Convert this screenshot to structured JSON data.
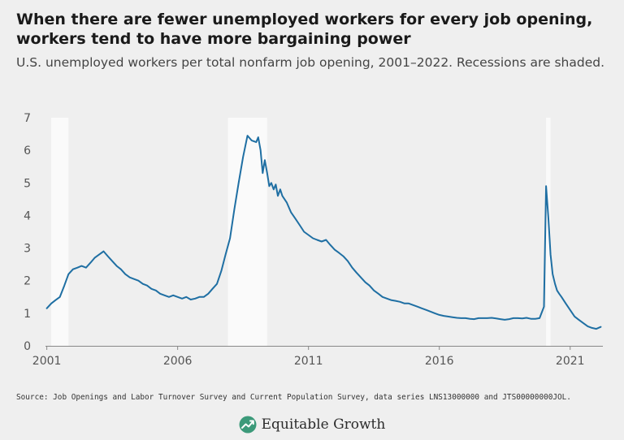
{
  "header": {
    "title": "When there are fewer unemployed workers for every job opening, workers tend to have more bargaining power",
    "subtitle": "U.S. unemployed workers per total nonfarm job opening, 2001–2022. Recessions are shaded."
  },
  "footer": {
    "source": "Source: Job Openings and Labor Turnover Survey and Current Population Survey, data series LNS13000000 and JTS00000000JOL.",
    "brand": "Equitable Growth",
    "brand_icon": "trend-arrow-leaf-icon"
  },
  "colors": {
    "background": "#efefef",
    "line": "#1f6fa3",
    "recession_shade": "#fafafa",
    "axis_text": "#555555",
    "brand_green": "#3c9a7a"
  },
  "chart_data": {
    "type": "line",
    "title": "When there are fewer unemployed workers for every job opening, workers tend to have more bargaining power",
    "subtitle": "U.S. unemployed workers per total nonfarm job opening, 2001–2022. Recessions are shaded.",
    "xlabel": "",
    "ylabel": "",
    "xlim": [
      2000.95,
      2022.25
    ],
    "ylim": [
      0,
      7
    ],
    "xticks": [
      2001,
      2006,
      2011,
      2016,
      2021
    ],
    "xtick_labels": [
      "2001",
      "2006",
      "2011",
      "2016",
      "2021"
    ],
    "yticks": [
      0,
      1,
      2,
      3,
      4,
      5,
      6,
      7
    ],
    "ytick_labels": [
      "0",
      "1",
      "2",
      "3",
      "4",
      "5",
      "6",
      "7"
    ],
    "grid": false,
    "recessions": [
      {
        "start": 2001.17,
        "end": 2001.83
      },
      {
        "start": 2007.92,
        "end": 2009.42
      },
      {
        "start": 2020.08,
        "end": 2020.25
      }
    ],
    "series": [
      {
        "x": [
          2001.0,
          2001.17,
          2001.33,
          2001.5,
          2001.67,
          2001.83,
          2002.0,
          2002.17,
          2002.33,
          2002.5,
          2002.67,
          2002.83,
          2003.0,
          2003.17,
          2003.33,
          2003.5,
          2003.67,
          2003.83,
          2004.0,
          2004.17,
          2004.33,
          2004.5,
          2004.67,
          2004.83,
          2005.0,
          2005.17,
          2005.33,
          2005.5,
          2005.67,
          2005.83,
          2006.0,
          2006.17,
          2006.33,
          2006.5,
          2006.67,
          2006.83,
          2007.0,
          2007.17,
          2007.33,
          2007.5,
          2007.67,
          2007.83,
          2008.0,
          2008.17,
          2008.33,
          2008.5,
          2008.67,
          2008.83,
          2009.0,
          2009.08,
          2009.17,
          2009.25,
          2009.33,
          2009.42,
          2009.5,
          2009.58,
          2009.67,
          2009.75,
          2009.83,
          2009.92,
          2010.0,
          2010.17,
          2010.33,
          2010.5,
          2010.67,
          2010.83,
          2011.0,
          2011.17,
          2011.33,
          2011.5,
          2011.67,
          2011.83,
          2012.0,
          2012.17,
          2012.33,
          2012.5,
          2012.67,
          2012.83,
          2013.0,
          2013.17,
          2013.33,
          2013.5,
          2013.67,
          2013.83,
          2014.0,
          2014.17,
          2014.33,
          2014.5,
          2014.67,
          2014.83,
          2015.0,
          2015.17,
          2015.33,
          2015.5,
          2015.67,
          2015.83,
          2016.0,
          2016.17,
          2016.33,
          2016.5,
          2016.67,
          2016.83,
          2017.0,
          2017.17,
          2017.33,
          2017.5,
          2017.67,
          2017.83,
          2018.0,
          2018.17,
          2018.33,
          2018.5,
          2018.67,
          2018.83,
          2019.0,
          2019.17,
          2019.33,
          2019.5,
          2019.67,
          2019.83,
          2020.0,
          2020.08,
          2020.17,
          2020.25,
          2020.33,
          2020.42,
          2020.5,
          2020.58,
          2020.67,
          2020.83,
          2021.0,
          2021.17,
          2021.33,
          2021.5,
          2021.67,
          2021.83,
          2022.0,
          2022.17
        ],
        "y": [
          1.15,
          1.3,
          1.4,
          1.5,
          1.85,
          2.2,
          2.35,
          2.4,
          2.45,
          2.4,
          2.55,
          2.7,
          2.8,
          2.9,
          2.75,
          2.6,
          2.45,
          2.35,
          2.2,
          2.1,
          2.05,
          2.0,
          1.9,
          1.85,
          1.75,
          1.7,
          1.6,
          1.55,
          1.5,
          1.55,
          1.5,
          1.45,
          1.5,
          1.42,
          1.45,
          1.5,
          1.5,
          1.6,
          1.75,
          1.9,
          2.3,
          2.8,
          3.3,
          4.2,
          5.0,
          5.8,
          6.45,
          6.3,
          6.25,
          6.4,
          6.0,
          5.3,
          5.7,
          5.3,
          4.9,
          5.0,
          4.8,
          4.95,
          4.6,
          4.8,
          4.6,
          4.4,
          4.1,
          3.9,
          3.7,
          3.5,
          3.4,
          3.3,
          3.25,
          3.2,
          3.25,
          3.1,
          2.95,
          2.85,
          2.75,
          2.6,
          2.4,
          2.25,
          2.1,
          1.95,
          1.85,
          1.7,
          1.6,
          1.5,
          1.45,
          1.4,
          1.38,
          1.35,
          1.3,
          1.3,
          1.25,
          1.2,
          1.15,
          1.1,
          1.05,
          1.0,
          0.95,
          0.92,
          0.9,
          0.88,
          0.86,
          0.85,
          0.85,
          0.83,
          0.82,
          0.85,
          0.85,
          0.85,
          0.86,
          0.84,
          0.82,
          0.8,
          0.82,
          0.85,
          0.85,
          0.84,
          0.86,
          0.83,
          0.83,
          0.85,
          1.2,
          4.9,
          3.9,
          2.8,
          2.2,
          1.9,
          1.7,
          1.6,
          1.5,
          1.3,
          1.1,
          0.9,
          0.8,
          0.7,
          0.6,
          0.55,
          0.52,
          0.58
        ]
      }
    ]
  }
}
